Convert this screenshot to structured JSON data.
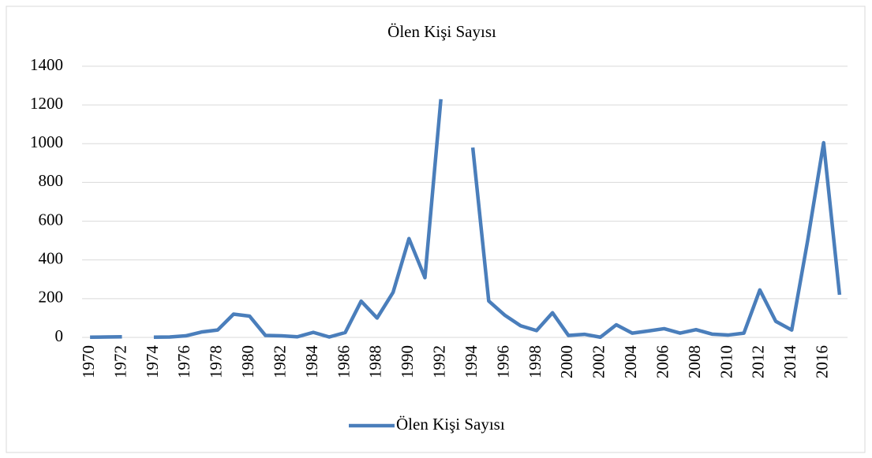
{
  "chart_data": {
    "type": "line",
    "title": "Ölen Kişi Sayısı",
    "x": [
      1970,
      1971,
      1972,
      1973,
      1974,
      1975,
      1976,
      1977,
      1978,
      1979,
      1980,
      1981,
      1982,
      1983,
      1984,
      1985,
      1986,
      1987,
      1988,
      1989,
      1990,
      1991,
      1992,
      1993,
      1994,
      1995,
      1996,
      1997,
      1998,
      1999,
      2000,
      2001,
      2002,
      2003,
      2004,
      2005,
      2006,
      2007,
      2008,
      2009,
      2010,
      2011,
      2012,
      2013,
      2014,
      2015,
      2016,
      2017
    ],
    "series": [
      {
        "name": "Ölen Kişi Sayısı",
        "color": "#4a7ebb",
        "values": [
          1,
          2,
          3,
          null,
          1,
          2,
          8,
          28,
          38,
          120,
          110,
          10,
          8,
          3,
          26,
          2,
          25,
          187,
          100,
          232,
          510,
          308,
          1230,
          null,
          980,
          188,
          115,
          60,
          35,
          127,
          10,
          16,
          1,
          65,
          22,
          33,
          45,
          22,
          40,
          17,
          12,
          22,
          245,
          83,
          38,
          500,
          1005,
          220
        ]
      }
    ],
    "xlim": [
      1969.5,
      2017.5
    ],
    "xticks": [
      1970,
      1972,
      1974,
      1976,
      1978,
      1980,
      1982,
      1984,
      1986,
      1988,
      1990,
      1992,
      1994,
      1996,
      1998,
      2000,
      2002,
      2004,
      2006,
      2008,
      2010,
      2012,
      2014,
      2016
    ],
    "ylim": [
      0,
      1400
    ],
    "yticks": [
      0,
      200,
      400,
      600,
      800,
      1000,
      1200,
      1400
    ],
    "grid": true,
    "legend": "bottom"
  }
}
